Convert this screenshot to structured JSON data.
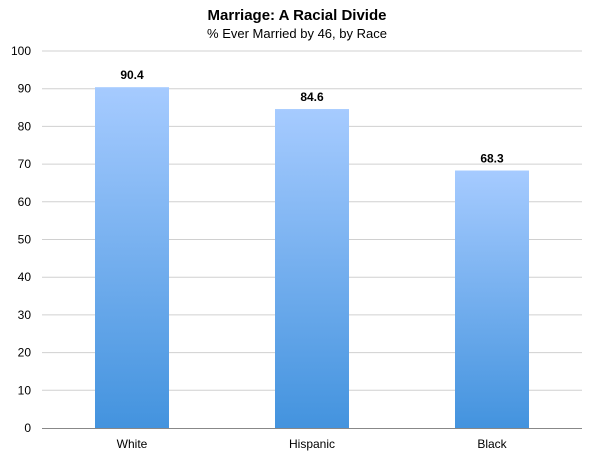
{
  "chart_data": {
    "type": "bar",
    "title": "Marriage: A Racial Divide",
    "subtitle": "% Ever Married by 46, by Race",
    "xlabel": "",
    "ylabel": "",
    "categories": [
      "White",
      "Hispanic",
      "Black"
    ],
    "values": [
      90.4,
      84.6,
      68.3
    ],
    "value_labels": [
      "90.4",
      "84.6",
      "68.3"
    ],
    "ylim": [
      0,
      100
    ],
    "y_ticks": [
      0,
      10,
      20,
      30,
      40,
      50,
      60,
      70,
      80,
      90,
      100
    ],
    "grid": true,
    "legend": "none",
    "colors": {
      "bar_top": "#a6cbff",
      "bar_bottom": "#4393de"
    }
  }
}
